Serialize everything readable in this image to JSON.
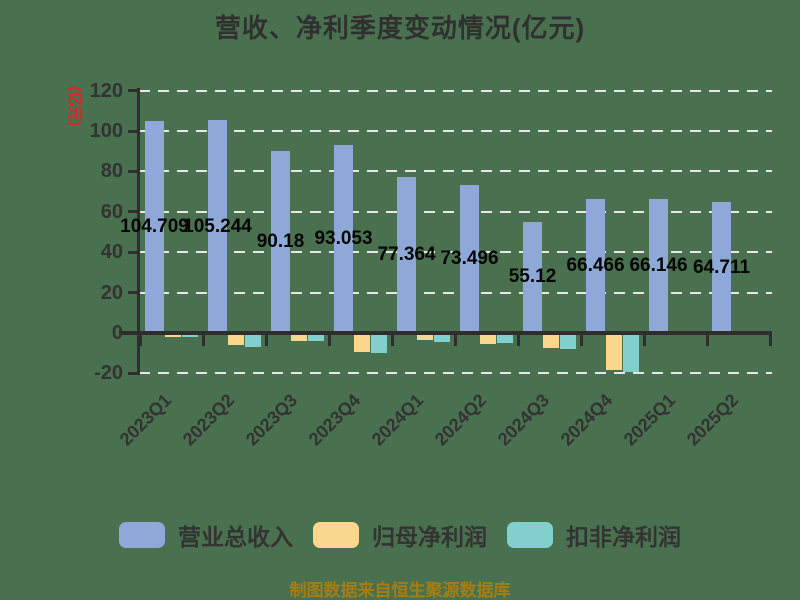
{
  "title": "营收、净利季度变动情况(亿元)",
  "y_axis_name": "(亿元)",
  "caption": "制图数据来自恒生聚源数据库",
  "colors": {
    "background": "#49714F",
    "axis": "#2E2E2E",
    "grid": "#E7E7E7",
    "tick_text": "#333333",
    "data_label_text": "#050505",
    "y_axis_name_text": "#E02222",
    "caption_text": "#A57D12"
  },
  "legend": {
    "items": [
      {
        "label": "营业总收入"
      },
      {
        "label": "归母净利润"
      },
      {
        "label": "扣非净利润"
      }
    ]
  },
  "chart_data": {
    "type": "bar",
    "title": "营收、净利季度变动情况(亿元)",
    "xlabel": "",
    "ylabel": "(亿元)",
    "categories": [
      "2023Q1",
      "2023Q2",
      "2023Q3",
      "2023Q4",
      "2024Q1",
      "2024Q2",
      "2024Q3",
      "2024Q4",
      "2025Q1",
      "2025Q2"
    ],
    "series": [
      {
        "name": "营业总收入",
        "color": "#8EA9D8",
        "values": [
          104.709,
          105.244,
          90.18,
          93.053,
          77.364,
          73.496,
          55.12,
          66.466,
          66.146,
          64.711
        ],
        "data_labels": [
          "104.709",
          "105.244",
          "90.18",
          "93.053",
          "77.364",
          "73.496",
          "55.12",
          "66.466",
          "66.146",
          "64.711"
        ]
      },
      {
        "name": "归母净利润",
        "color": "#FAD78C",
        "values": [
          -1.9,
          -5.9,
          -3.8,
          -9.3,
          -3.7,
          -5.6,
          -7.5,
          -18.4,
          -0.6,
          0.3
        ]
      },
      {
        "name": "扣非净利润",
        "color": "#82D0CE",
        "values": [
          -2.2,
          -6.8,
          -4.2,
          -9.9,
          -4.6,
          -5.1,
          -7.9,
          -19.2,
          0.8,
          0.7
        ]
      }
    ],
    "y_ticks": [
      120,
      100,
      80,
      60,
      40,
      20,
      0,
      -20
    ],
    "ylim": [
      -20,
      120
    ],
    "grid": true,
    "grid_style": "dashed",
    "legend_position": "bottom",
    "x_label_rotation": 45,
    "data_label_position": "inside-center-of-revenue-bars"
  }
}
